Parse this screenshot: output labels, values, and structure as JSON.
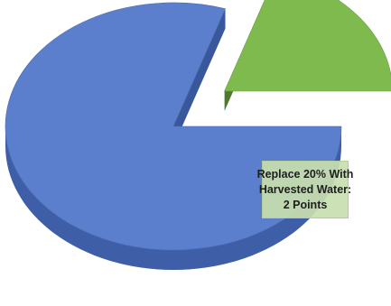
{
  "chart_data": {
    "type": "pie",
    "style": "3d-exploded",
    "slices": [
      {
        "value": 80,
        "color": "#5b7fcd",
        "side_color": "#3e5fa8",
        "label": ""
      },
      {
        "value": 20,
        "color": "#7fba4f",
        "side_color": "#5c9132",
        "label": "Replace 20% With Harvested Water: 2 Points",
        "exploded": true
      }
    ],
    "callout": {
      "lines": [
        "Replace 20% With",
        "Harvested Water:",
        "2 Points"
      ]
    }
  }
}
